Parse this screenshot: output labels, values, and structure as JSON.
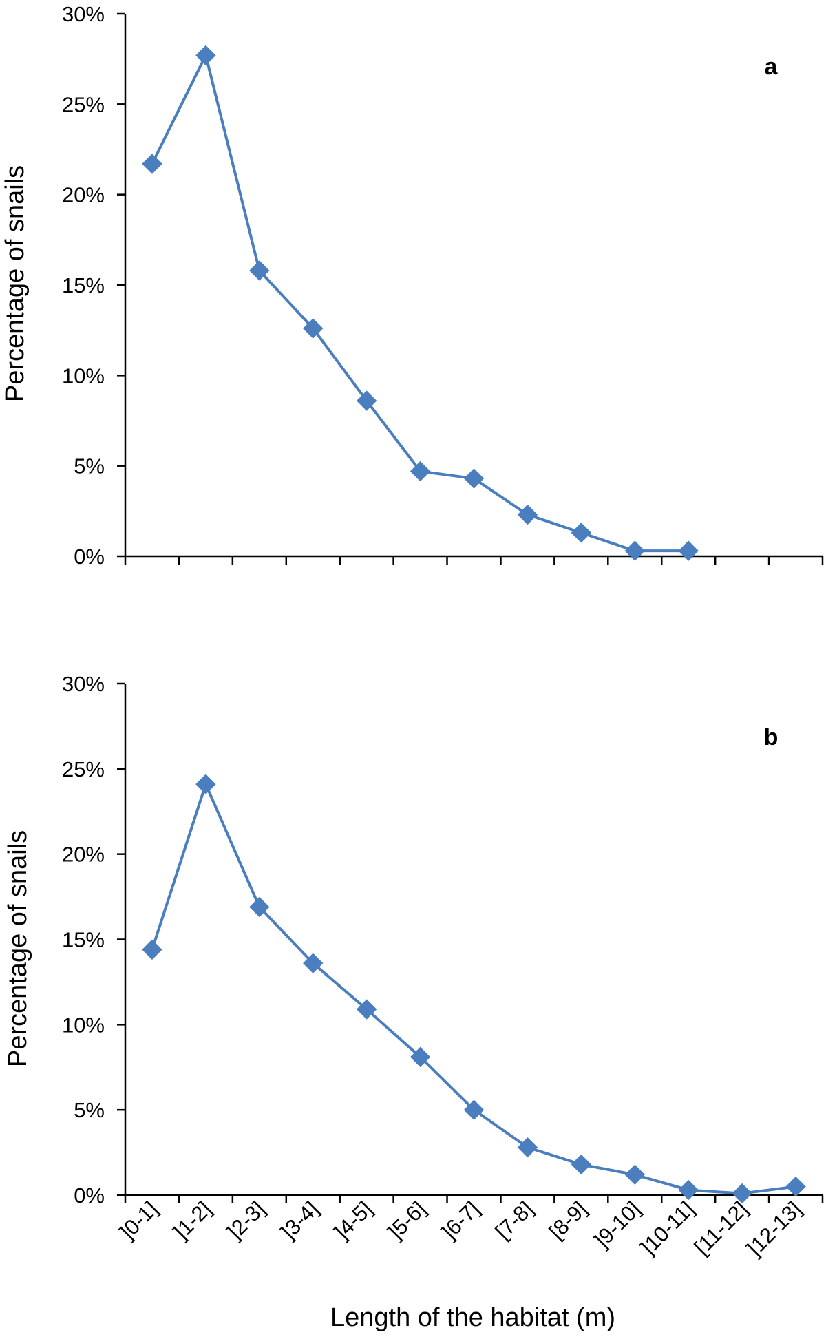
{
  "series_color": "#4a7ebf",
  "chart_data": [
    {
      "type": "line",
      "panel_label": "a",
      "categories": [
        "]0-1]",
        "]1-2]",
        "]2-3]",
        "]3-4]",
        "]4-5]",
        "]5-6]",
        "]6-7]",
        "[7-8]",
        "[8-9]",
        "]9-10]",
        "]10-11]",
        "[11-12]",
        "]12-13]"
      ],
      "values": [
        21.7,
        27.7,
        15.8,
        12.6,
        8.6,
        4.7,
        4.3,
        2.3,
        1.3,
        0.3,
        0.3,
        null,
        null
      ],
      "ylabel": "Percentage of snails",
      "xlabel": "",
      "ylim": [
        0,
        30
      ],
      "yticks": [
        "0%",
        "5%",
        "10%",
        "15%",
        "20%",
        "25%",
        "30%"
      ],
      "show_x_tick_labels": false,
      "grid": false,
      "marker": "diamond"
    },
    {
      "type": "line",
      "panel_label": "b",
      "categories": [
        "]0-1]",
        "]1-2]",
        "]2-3]",
        "]3-4]",
        "]4-5]",
        "]5-6]",
        "]6-7]",
        "[7-8]",
        "[8-9]",
        "]9-10]",
        "]10-11]",
        "[11-12]",
        "]12-13]"
      ],
      "values": [
        14.4,
        24.1,
        16.9,
        13.6,
        10.9,
        8.1,
        5.0,
        2.8,
        1.8,
        1.2,
        0.3,
        0.1,
        0.5
      ],
      "ylabel": "Percentage of snails",
      "xlabel": "Length of the habitat (m)",
      "ylim": [
        0,
        30
      ],
      "yticks": [
        "0%",
        "5%",
        "10%",
        "15%",
        "20%",
        "25%",
        "30%"
      ],
      "show_x_tick_labels": true,
      "grid": false,
      "marker": "diamond"
    }
  ]
}
